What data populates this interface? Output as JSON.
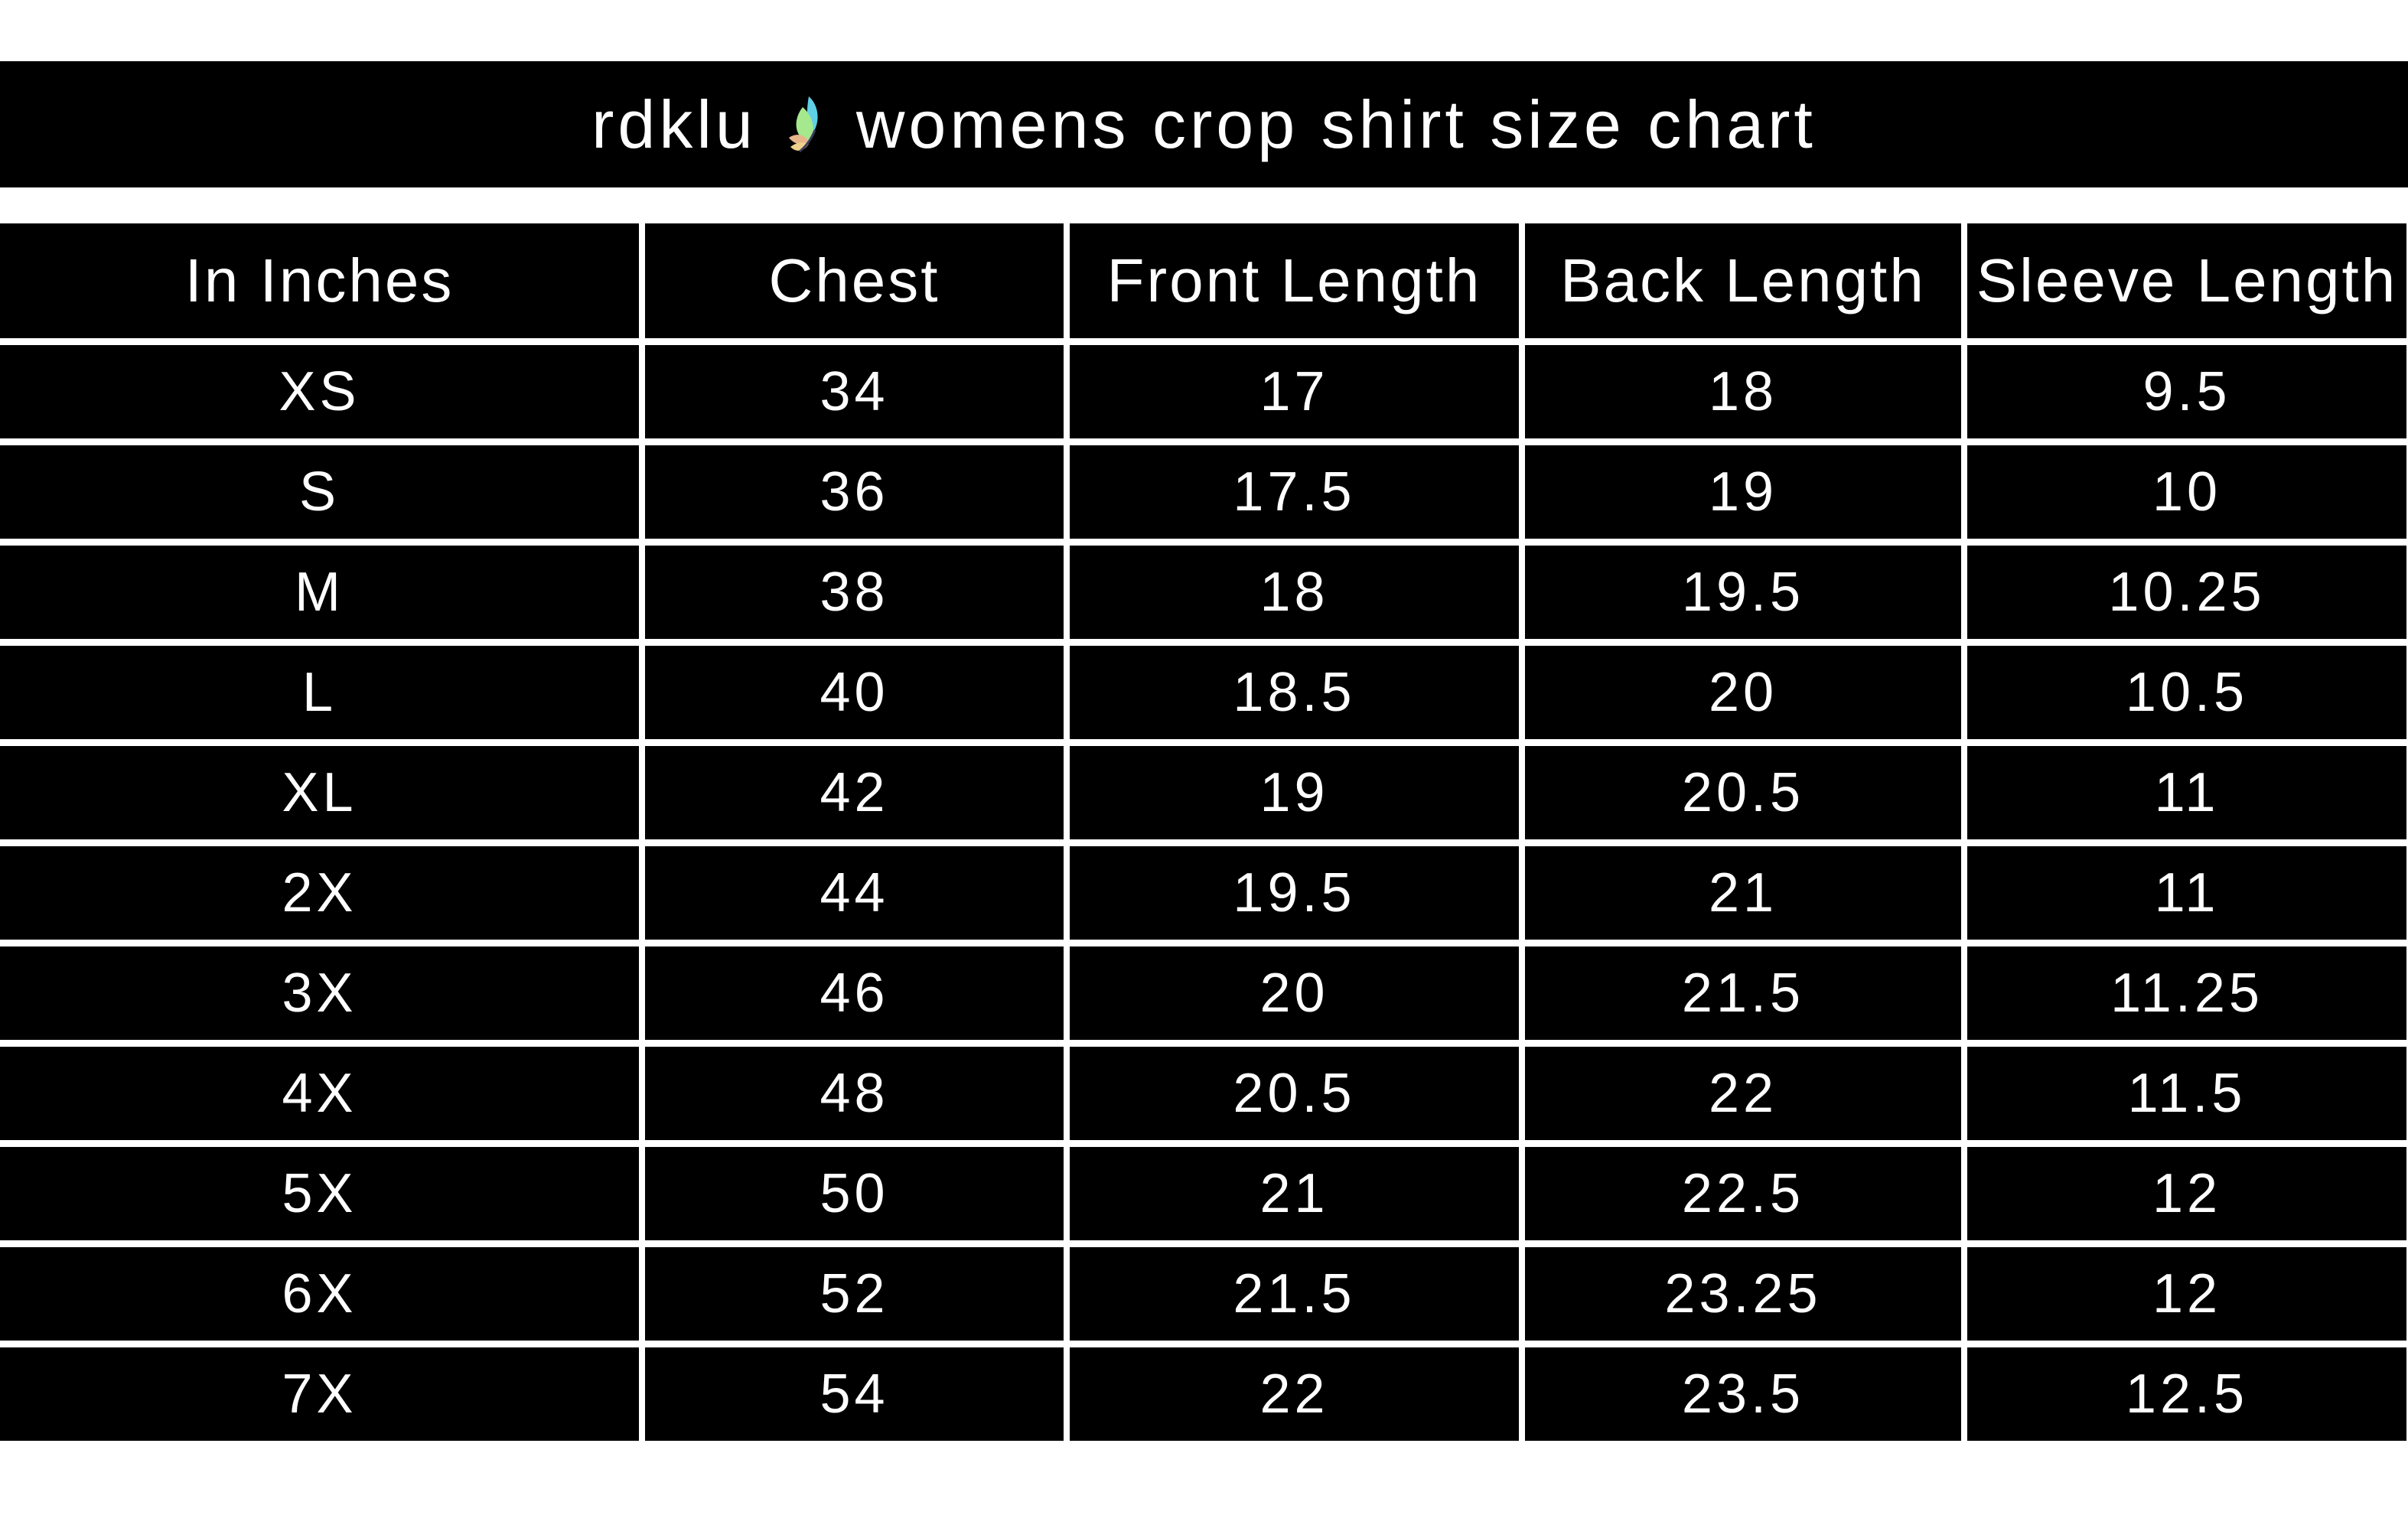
{
  "title": {
    "brand": "rdklu",
    "logo_icon": "butterfly-icon",
    "text": "womens crop shirt size chart"
  },
  "colors": {
    "background": "#000000",
    "text": "#ffffff"
  },
  "table": {
    "headers": [
      "In Inches",
      "Chest",
      "Front Length",
      "Back Length",
      "Sleeve Length"
    ],
    "rows": [
      [
        "XS",
        "34",
        "17",
        "18",
        "9.5"
      ],
      [
        "S",
        "36",
        "17.5",
        "19",
        "10"
      ],
      [
        "M",
        "38",
        "18",
        "19.5",
        "10.25"
      ],
      [
        "L",
        "40",
        "18.5",
        "20",
        "10.5"
      ],
      [
        "XL",
        "42",
        "19",
        "20.5",
        "11"
      ],
      [
        "2X",
        "44",
        "19.5",
        "21",
        "11"
      ],
      [
        "3X",
        "46",
        "20",
        "21.5",
        "11.25"
      ],
      [
        "4X",
        "48",
        "20.5",
        "22",
        "11.5"
      ],
      [
        "5X",
        "50",
        "21",
        "22.5",
        "12"
      ],
      [
        "6X",
        "52",
        "21.5",
        "23.25",
        "12"
      ],
      [
        "7X",
        "54",
        "22",
        "23.5",
        "12.5"
      ]
    ]
  }
}
